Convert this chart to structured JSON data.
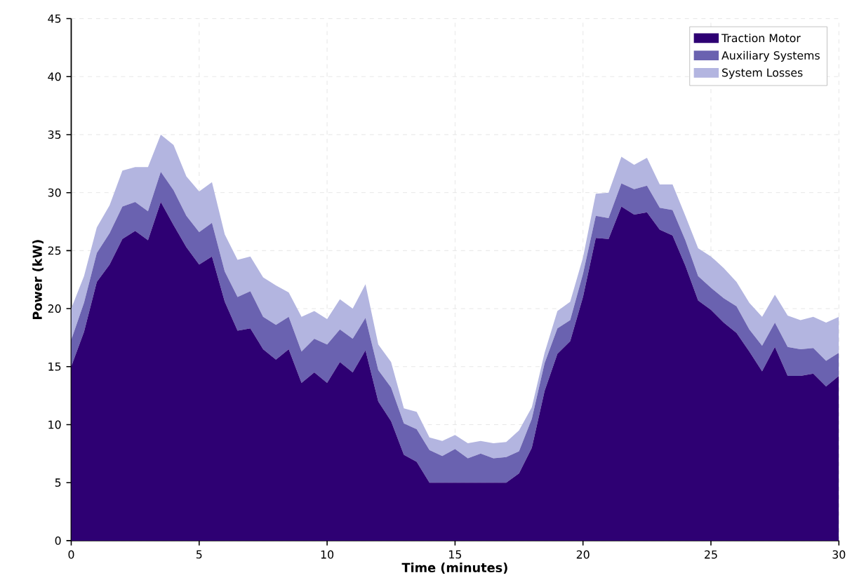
{
  "chart_data": {
    "type": "area",
    "stacked": true,
    "xlabel": "Time (minutes)",
    "ylabel": "Power (kW)",
    "x": [
      0,
      0.5,
      1,
      1.5,
      2,
      2.5,
      3,
      3.5,
      4,
      4.5,
      5,
      5.5,
      6,
      6.5,
      7,
      7.5,
      8,
      8.5,
      9,
      9.5,
      10,
      10.5,
      11,
      11.5,
      12,
      12.5,
      13,
      13.5,
      14,
      14.5,
      15,
      15.5,
      16,
      16.5,
      17,
      17.5,
      18,
      18.5,
      19,
      19.5,
      20,
      20.5,
      21,
      21.5,
      22,
      22.5,
      23,
      23.5,
      24,
      24.5,
      25,
      25.5,
      26,
      26.5,
      27,
      27.5,
      28,
      28.5,
      29,
      29.5,
      30
    ],
    "series": [
      {
        "name": "Traction Motor",
        "color": "#2e0073",
        "values": [
          15.0,
          18.0,
          22.3,
          23.8,
          26.0,
          26.7,
          25.9,
          29.2,
          27.2,
          25.3,
          23.8,
          24.5,
          20.6,
          18.1,
          18.3,
          16.5,
          15.6,
          16.5,
          13.6,
          14.5,
          13.6,
          15.4,
          14.5,
          16.4,
          12.0,
          10.3,
          7.4,
          6.8,
          5.0,
          5.0,
          5.0,
          5.0,
          5.0,
          5.0,
          5.0,
          5.8,
          8.0,
          12.9,
          16.1,
          17.2,
          21.0,
          26.1,
          26.0,
          28.8,
          28.1,
          28.3,
          26.8,
          26.3,
          23.7,
          20.7,
          19.9,
          18.8,
          17.9,
          16.3,
          14.6,
          16.7,
          14.2,
          14.2,
          14.4,
          13.3,
          14.2
        ]
      },
      {
        "name": "Auxiliary Systems",
        "color": "#6a62b0",
        "values": [
          2.3,
          2.5,
          2.5,
          2.7,
          2.8,
          2.5,
          2.5,
          2.6,
          3.0,
          2.7,
          2.8,
          2.9,
          2.6,
          2.9,
          3.2,
          2.8,
          3.0,
          2.8,
          2.7,
          2.9,
          3.3,
          2.8,
          2.9,
          2.8,
          2.7,
          2.9,
          2.7,
          2.8,
          2.8,
          2.3,
          2.9,
          2.1,
          2.5,
          2.1,
          2.2,
          1.9,
          2.5,
          2.4,
          2.2,
          1.8,
          2.0,
          1.9,
          1.8,
          2.0,
          2.2,
          2.3,
          1.9,
          2.2,
          2.2,
          2.1,
          1.9,
          2.1,
          2.3,
          1.9,
          2.2,
          2.1,
          2.5,
          2.3,
          2.2,
          2.2,
          2.0
        ]
      },
      {
        "name": "System Losses",
        "color": "#b3b5e0",
        "values": [
          2.7,
          2.3,
          2.2,
          2.4,
          3.1,
          3.0,
          3.8,
          3.2,
          3.9,
          3.4,
          3.5,
          3.5,
          3.2,
          3.2,
          3.0,
          3.4,
          3.4,
          2.1,
          3.0,
          2.4,
          2.2,
          2.6,
          2.6,
          2.9,
          2.2,
          2.2,
          1.3,
          1.5,
          1.1,
          1.3,
          1.2,
          1.3,
          1.1,
          1.3,
          1.3,
          1.8,
          1.0,
          0.9,
          1.5,
          1.6,
          1.4,
          1.9,
          2.2,
          2.3,
          2.1,
          2.4,
          2.0,
          2.2,
          2.1,
          2.4,
          2.7,
          2.6,
          2.1,
          2.3,
          2.5,
          2.4,
          2.7,
          2.5,
          2.7,
          3.3,
          3.1
        ]
      }
    ],
    "xlim": [
      0,
      30
    ],
    "xticks": [
      0,
      5,
      10,
      15,
      20,
      25,
      30
    ],
    "ylim": [
      0,
      45
    ],
    "yticks": [
      0,
      5,
      10,
      15,
      20,
      25,
      30,
      35,
      40,
      45
    ],
    "grid": true,
    "legend": "top right"
  }
}
